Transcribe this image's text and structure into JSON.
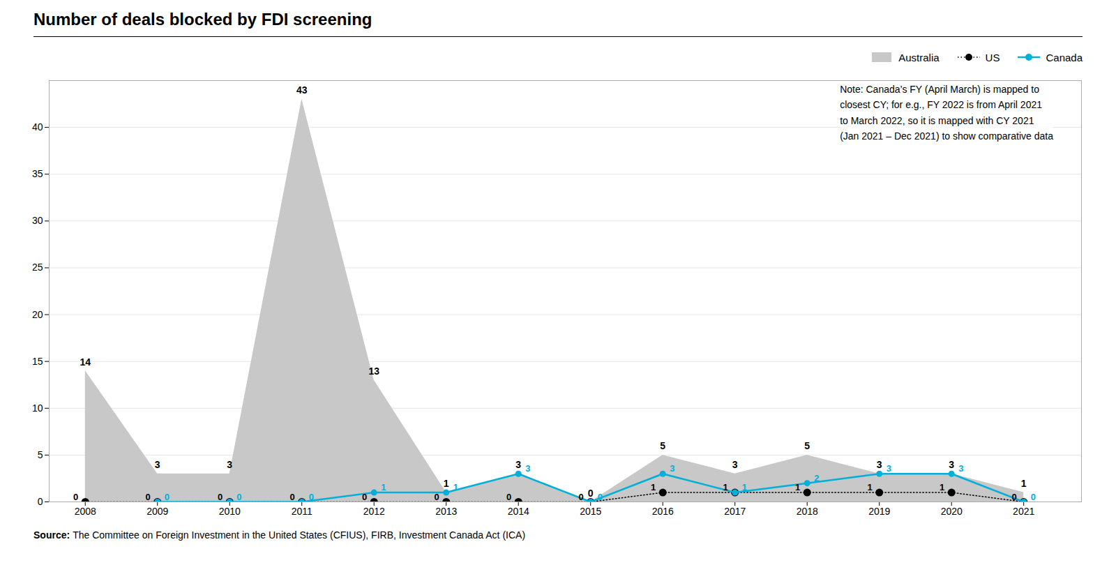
{
  "chart_data": {
    "type": "line",
    "title": "Number of deals blocked by FDI screening",
    "x": [
      2008,
      2009,
      2010,
      2011,
      2012,
      2013,
      2014,
      2015,
      2016,
      2017,
      2018,
      2019,
      2020,
      2021
    ],
    "xlim": [
      2007.5,
      2021.8
    ],
    "xticks": [
      2008,
      2009,
      2010,
      2011,
      2012,
      2013,
      2014,
      2015,
      2016,
      2017,
      2018,
      2019,
      2020,
      2021
    ],
    "ylim": [
      0,
      45
    ],
    "yticks": [
      0,
      5,
      10,
      15,
      20,
      25,
      30,
      35,
      40
    ],
    "grid": true,
    "legend": "upper right",
    "data_labels": true,
    "series": [
      {
        "name": "Australia",
        "type": "area",
        "color": "#c8c8c8",
        "values": [
          14,
          3,
          3,
          43,
          13,
          1,
          3,
          0,
          5,
          3,
          5,
          3,
          3,
          1
        ]
      },
      {
        "name": "US",
        "type": "line",
        "color": "#000000",
        "line_style": "dotted",
        "marker": "circle",
        "values": [
          0,
          0,
          0,
          0,
          0,
          0,
          0,
          0,
          1,
          1,
          1,
          1,
          1,
          0
        ]
      },
      {
        "name": "Canada",
        "type": "line",
        "color": "#00b0d8",
        "line_style": "solid",
        "marker": "circle",
        "values": [
          null,
          0,
          0,
          0,
          1,
          1,
          3,
          0,
          3,
          1,
          2,
          3,
          3,
          0
        ]
      }
    ],
    "annotations": [
      "Note: Canada’s FY (April March) is mapped to\nclosest CY; for e.g., FY 2022 is from April 2021\nto March 2022, so it is mapped with CY 2021\n(Jan 2021 – Dec 2021) to show comparative data"
    ],
    "source_label": "Source:",
    "source_text": "The Committee on Foreign Investment in the United States (CFIUS), FIRB, Investment Canada Act (ICA)"
  }
}
